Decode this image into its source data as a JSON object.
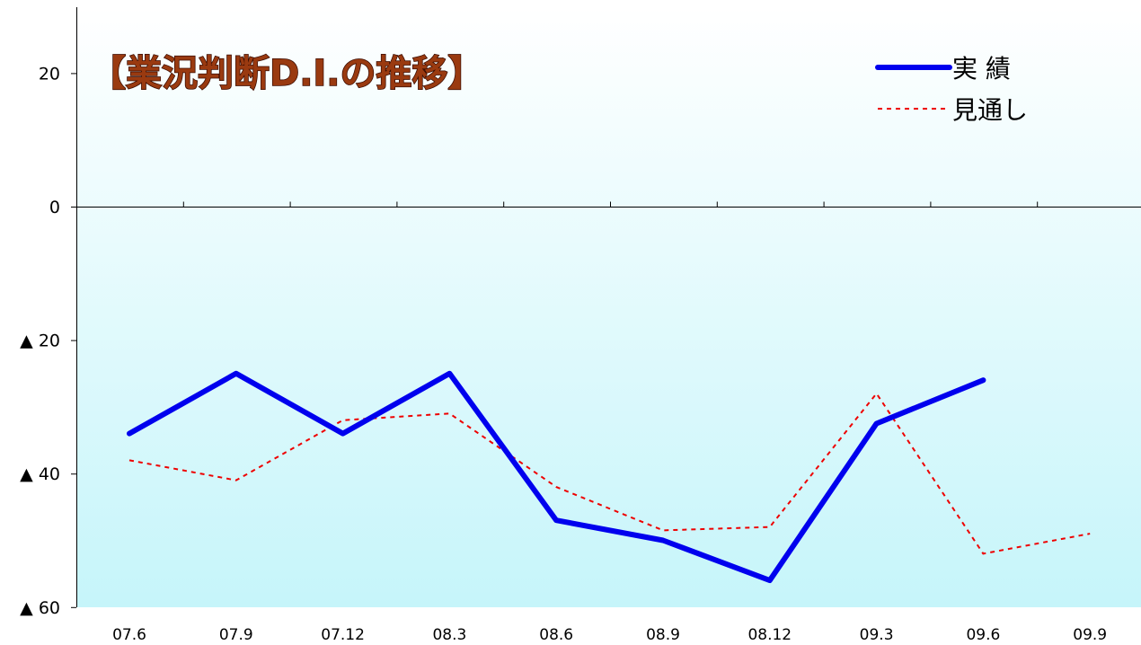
{
  "chart_data": {
    "type": "line",
    "title": "【業況判断D.I.の推移】",
    "categories": [
      "07.6",
      "07.9",
      "07.12",
      "08.3",
      "08.6",
      "08.9",
      "08.12",
      "09.3",
      "09.6",
      "09.9"
    ],
    "ylim": [
      -60,
      30
    ],
    "y_ticks": [
      {
        "value": 20,
        "label": "20"
      },
      {
        "value": 0,
        "label": "0"
      },
      {
        "value": -20,
        "label": "▲ 20"
      },
      {
        "value": -40,
        "label": "▲ 40"
      },
      {
        "value": -60,
        "label": "▲ 60"
      }
    ],
    "series": [
      {
        "name": "実 績",
        "style": "solid",
        "color": "#0000ee",
        "values": [
          -34,
          -25,
          -34,
          -25,
          -47,
          -50,
          -56,
          -32.5,
          -26,
          null
        ]
      },
      {
        "name": "見通し",
        "style": "dotted",
        "color": "#ee0000",
        "values": [
          -38,
          -41,
          -32,
          -31,
          -42,
          -48.5,
          -48,
          -28,
          -52,
          -49
        ]
      }
    ],
    "legend_position": "top-right",
    "grid": false,
    "colors": {
      "title_fill": "#9a3a10",
      "title_outline": "#3a0c00",
      "background_top": "#ffffff",
      "background_bottom": "#c6f5fa"
    }
  }
}
